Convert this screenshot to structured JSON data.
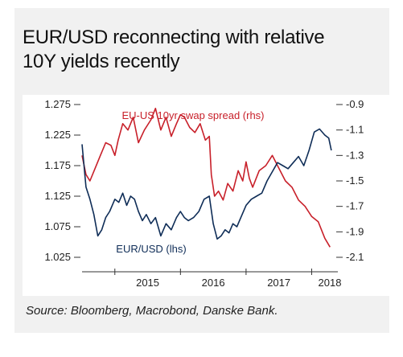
{
  "header": {
    "title_line1": "EUR/USD reconnecting with relative",
    "title_line2": "10Y yields recently"
  },
  "footer": {
    "source": "Source: Bloomberg, Macrobond, Danske Bank."
  },
  "chart_data": {
    "type": "line",
    "title": "EUR/USD reconnecting with relative 10Y yields recently",
    "x_ticks": [
      "2015",
      "2016",
      "2017",
      "2018"
    ],
    "x_range": [
      2014.5,
      2018.35
    ],
    "y_left": {
      "ticks": [
        "1.275",
        "1.225",
        "1.175",
        "1.125",
        "1.075",
        "1.025"
      ],
      "range": [
        1.025,
        1.275
      ]
    },
    "y_right": {
      "ticks": [
        "-0.9",
        "-1.1",
        "-1.3",
        "-1.5",
        "-1.7",
        "-1.9",
        "-2.1"
      ],
      "range": [
        -2.1,
        -0.9
      ],
      "inverted": true
    },
    "series": [
      {
        "name": "EU-US 10yr swap spread (rhs)",
        "axis": "right",
        "color": "#c8202a",
        "x": [
          2014.5,
          2014.56,
          2014.62,
          2014.7,
          2014.78,
          2014.86,
          2014.94,
          2015.0,
          2015.05,
          2015.12,
          2015.2,
          2015.28,
          2015.36,
          2015.45,
          2015.55,
          2015.62,
          2015.7,
          2015.78,
          2015.86,
          2015.94,
          2016.0,
          2016.06,
          2016.14,
          2016.22,
          2016.3,
          2016.38,
          2016.44,
          2016.47,
          2016.52,
          2016.58,
          2016.65,
          2016.72,
          2016.8,
          2016.88,
          2016.95,
          2017.0,
          2017.05,
          2017.1,
          2017.2,
          2017.3,
          2017.4,
          2017.5,
          2017.6,
          2017.7,
          2017.8,
          2017.9,
          2018.0,
          2018.1,
          2018.2,
          2018.28
        ],
        "values": [
          -1.3,
          -1.45,
          -1.5,
          -1.4,
          -1.3,
          -1.2,
          -1.22,
          -1.3,
          -1.18,
          -1.05,
          -1.1,
          -1.0,
          -1.2,
          -1.1,
          -1.02,
          -0.93,
          -1.1,
          -1.0,
          -1.15,
          -1.05,
          -0.98,
          -1.0,
          -1.08,
          -1.12,
          -1.05,
          -1.18,
          -1.15,
          -1.45,
          -1.62,
          -1.58,
          -1.65,
          -1.52,
          -1.58,
          -1.42,
          -1.5,
          -1.35,
          -1.48,
          -1.55,
          -1.42,
          -1.38,
          -1.3,
          -1.4,
          -1.5,
          -1.55,
          -1.65,
          -1.7,
          -1.78,
          -1.82,
          -1.95,
          -2.02
        ]
      },
      {
        "name": "EUR/USD (lhs)",
        "axis": "left",
        "color": "#0f2d57",
        "x": [
          2014.5,
          2014.56,
          2014.62,
          2014.68,
          2014.74,
          2014.8,
          2014.86,
          2014.92,
          2015.0,
          2015.06,
          2015.12,
          2015.18,
          2015.24,
          2015.3,
          2015.36,
          2015.42,
          2015.48,
          2015.55,
          2015.62,
          2015.7,
          2015.78,
          2015.86,
          2015.94,
          2016.0,
          2016.06,
          2016.12,
          2016.2,
          2016.28,
          2016.36,
          2016.44,
          2016.5,
          2016.56,
          2016.62,
          2016.68,
          2016.74,
          2016.8,
          2016.86,
          2016.92,
          2017.0,
          2017.08,
          2017.16,
          2017.24,
          2017.32,
          2017.4,
          2017.48,
          2017.56,
          2017.64,
          2017.72,
          2017.8,
          2017.88,
          2017.96,
          2018.04,
          2018.12,
          2018.2,
          2018.26,
          2018.3
        ],
        "values": [
          1.21,
          1.14,
          1.12,
          1.095,
          1.06,
          1.07,
          1.09,
          1.1,
          1.12,
          1.115,
          1.13,
          1.11,
          1.125,
          1.12,
          1.1,
          1.085,
          1.095,
          1.08,
          1.09,
          1.06,
          1.08,
          1.07,
          1.09,
          1.1,
          1.09,
          1.085,
          1.09,
          1.1,
          1.12,
          1.125,
          1.08,
          1.055,
          1.06,
          1.07,
          1.065,
          1.08,
          1.075,
          1.09,
          1.11,
          1.12,
          1.125,
          1.13,
          1.15,
          1.165,
          1.18,
          1.175,
          1.17,
          1.18,
          1.19,
          1.175,
          1.2,
          1.23,
          1.235,
          1.225,
          1.22,
          1.2
        ]
      }
    ],
    "annotations": [
      {
        "text": "EU-US 10yr swap spread (rhs)",
        "series": "EU-US 10yr swap spread (rhs)"
      },
      {
        "text": "EUR/USD (lhs)",
        "series": "EUR/USD (lhs)"
      }
    ],
    "grid": false,
    "legend": "inline labels"
  }
}
